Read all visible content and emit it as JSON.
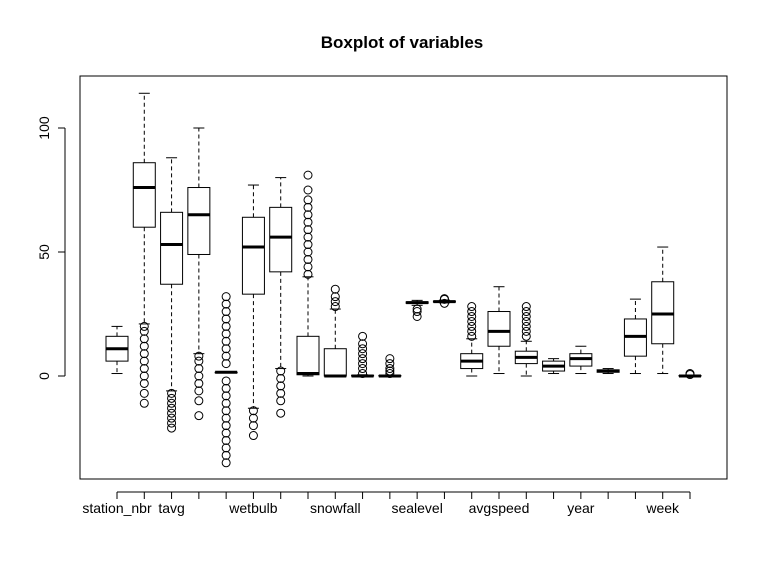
{
  "chart_data": {
    "type": "boxplot",
    "title": "Boxplot of variables",
    "xlabel": "",
    "ylabel": "",
    "ylim": [
      -40,
      120
    ],
    "y_ticks": [
      0,
      50,
      100
    ],
    "x_labels_shown": [
      "station_nbr",
      "tavg",
      "wetbulb",
      "snowfall",
      "sealevel",
      "avgspeed",
      "year",
      "week"
    ],
    "series": [
      {
        "id": "b1",
        "label": "station_nbr",
        "lower_whisker": 1,
        "q1": 6,
        "median": 11,
        "q3": 16,
        "upper_whisker": 20,
        "outliers": []
      },
      {
        "id": "b2",
        "label": "",
        "lower_whisker": 21,
        "q1": 60,
        "median": 76,
        "q3": 86,
        "upper_whisker": 114,
        "outliers": [
          -11,
          -7,
          -3,
          0,
          3,
          6,
          9,
          12,
          15,
          18,
          20
        ]
      },
      {
        "id": "b3",
        "label": "tavg",
        "lower_whisker": -6,
        "q1": 37,
        "median": 53,
        "q3": 66,
        "upper_whisker": 88,
        "outliers": [
          -21,
          -19,
          -17,
          -15,
          -13,
          -11,
          -9,
          -7
        ]
      },
      {
        "id": "b4",
        "label": "",
        "lower_whisker": 9,
        "q1": 49,
        "median": 65,
        "q3": 76,
        "upper_whisker": 100,
        "outliers": [
          -16,
          -10,
          -6,
          -3,
          0,
          3,
          6,
          8
        ]
      },
      {
        "id": "b5",
        "label": "",
        "lower_whisker": 1.5,
        "q1": 1.5,
        "median": 1.5,
        "q3": 1.5,
        "upper_whisker": 1.5,
        "outliers": [
          -35,
          -32,
          -29,
          -26,
          -23,
          -20,
          -17,
          -14,
          -11,
          -8,
          -5,
          -2,
          5,
          8,
          11,
          14,
          17,
          20,
          23,
          26,
          29,
          32
        ]
      },
      {
        "id": "b6",
        "label": "wetbulb",
        "lower_whisker": -13,
        "q1": 33,
        "median": 52,
        "q3": 64,
        "upper_whisker": 77,
        "outliers": [
          -24,
          -20,
          -17,
          -14
        ]
      },
      {
        "id": "b7",
        "label": "",
        "lower_whisker": 3,
        "q1": 42,
        "median": 56,
        "q3": 68,
        "upper_whisker": 80,
        "outliers": [
          -15,
          -10,
          -7,
          -4,
          -1,
          2
        ]
      },
      {
        "id": "b8",
        "label": "",
        "lower_whisker": 0,
        "q1": 0.5,
        "median": 1,
        "q3": 16,
        "upper_whisker": 40,
        "outliers": [
          41,
          44,
          47,
          50,
          53,
          56,
          59,
          62,
          65,
          68,
          71,
          75,
          81
        ]
      },
      {
        "id": "b9",
        "label": "snowfall",
        "lower_whisker": 0,
        "q1": 0,
        "median": 0,
        "q3": 11,
        "upper_whisker": 27,
        "outliers": [
          28,
          30,
          32,
          35
        ]
      },
      {
        "id": "b10",
        "label": "",
        "lower_whisker": 0,
        "q1": 0,
        "median": 0,
        "q3": 0.3,
        "upper_whisker": 0.5,
        "outliers": [
          1,
          3,
          5,
          7,
          9,
          11,
          13,
          16
        ]
      },
      {
        "id": "b11",
        "label": "",
        "lower_whisker": 0,
        "q1": 0,
        "median": 0,
        "q3": 0.2,
        "upper_whisker": 0.3,
        "outliers": [
          1,
          2,
          3,
          5,
          7
        ]
      },
      {
        "id": "b12",
        "label": "sealevel",
        "lower_whisker": 28.5,
        "q1": 29.3,
        "median": 29.6,
        "q3": 29.9,
        "upper_whisker": 30.5,
        "outliers": [
          24,
          26,
          27
        ]
      },
      {
        "id": "b13",
        "label": "",
        "lower_whisker": 29.5,
        "q1": 29.8,
        "median": 30,
        "q3": 30.2,
        "upper_whisker": 30.6,
        "outliers": [
          29.3,
          30.9,
          31.2
        ]
      },
      {
        "id": "b14",
        "label": "",
        "lower_whisker": 0,
        "q1": 3,
        "median": 6,
        "q3": 9,
        "upper_whisker": 15,
        "outliers": [
          16,
          18,
          20,
          22,
          24,
          26,
          28
        ]
      },
      {
        "id": "b15",
        "label": "avgspeed",
        "lower_whisker": 1,
        "q1": 12,
        "median": 18,
        "q3": 26,
        "upper_whisker": 36,
        "outliers": []
      },
      {
        "id": "b16",
        "label": "",
        "lower_whisker": 0,
        "q1": 5,
        "median": 7.5,
        "q3": 10,
        "upper_whisker": 14,
        "outliers": [
          16,
          18,
          20,
          22,
          24,
          26,
          28
        ]
      },
      {
        "id": "b17",
        "label": "",
        "lower_whisker": 1,
        "q1": 2,
        "median": 4,
        "q3": 6,
        "upper_whisker": 7,
        "outliers": []
      },
      {
        "id": "b18",
        "label": "year",
        "lower_whisker": 1,
        "q1": 4,
        "median": 7,
        "q3": 9,
        "upper_whisker": 12,
        "outliers": []
      },
      {
        "id": "b19",
        "label": "",
        "lower_whisker": 1,
        "q1": 1.5,
        "median": 2,
        "q3": 2.5,
        "upper_whisker": 3,
        "outliers": []
      },
      {
        "id": "b20",
        "label": "",
        "lower_whisker": 1,
        "q1": 8,
        "median": 16,
        "q3": 23,
        "upper_whisker": 31,
        "outliers": []
      },
      {
        "id": "b21",
        "label": "week",
        "lower_whisker": 1,
        "q1": 13,
        "median": 25,
        "q3": 38,
        "upper_whisker": 52,
        "outliers": []
      },
      {
        "id": "b22",
        "label": "",
        "lower_whisker": 0,
        "q1": 0,
        "median": 0,
        "q3": 0.2,
        "upper_whisker": 0.3,
        "outliers": [
          0.6,
          1
        ]
      }
    ]
  }
}
